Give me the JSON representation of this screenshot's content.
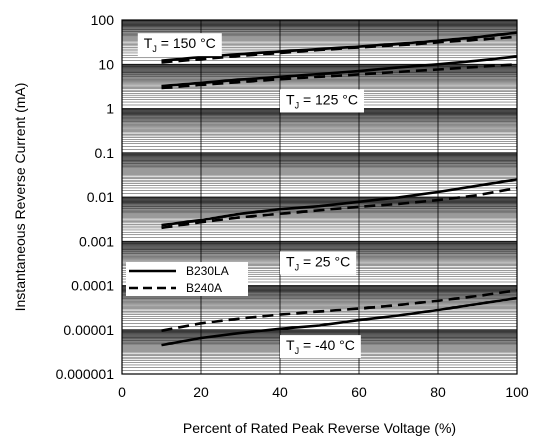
{
  "chart_data": {
    "type": "line",
    "xlabel": "Percent of Rated Peak Reverse Voltage (%)",
    "ylabel": "Instantaneous Reverse Current (mA)",
    "xlim": [
      0,
      100
    ],
    "ylim": [
      1e-06,
      100
    ],
    "yscale": "log",
    "grid": true,
    "x_ticks": [
      0,
      20,
      40,
      60,
      80,
      100
    ],
    "x_tick_labels": [
      "0",
      "20",
      "40",
      "60",
      "80",
      "100"
    ],
    "y_ticks": [
      1e-06,
      1e-05,
      0.0001,
      0.001,
      0.01,
      0.1,
      1,
      10,
      100
    ],
    "y_tick_labels": [
      "0.000001",
      "0.00001",
      "0.0001",
      "0.001",
      "0.01",
      "0.1",
      "1",
      "10",
      "100"
    ],
    "legend": {
      "placement": "left",
      "entries": [
        {
          "name": "B230LA",
          "style": "solid"
        },
        {
          "name": "B240A",
          "style": "dashed"
        }
      ]
    },
    "annotations": [
      {
        "main": "T",
        "sub": "J",
        "rest": " = 150 °C",
        "x": 4,
        "y": 30
      },
      {
        "main": "T",
        "sub": "J",
        "rest": " = 125 °C",
        "x": 40,
        "y": 1.6
      },
      {
        "main": "T",
        "sub": "J",
        "rest": " = 25 °C",
        "x": 40,
        "y": 0.00035
      },
      {
        "main": "T",
        "sub": "J",
        "rest": " = -40 °C",
        "x": 40,
        "y": 4.5e-06
      }
    ],
    "series": [
      {
        "name": "B230LA",
        "group": "TJ=150",
        "style": "solid",
        "x": [
          10,
          20,
          30,
          40,
          50,
          60,
          70,
          80,
          90,
          100
        ],
        "y": [
          12,
          14.5,
          17,
          19.5,
          22,
          25,
          29,
          34,
          41,
          52
        ]
      },
      {
        "name": "B240A",
        "group": "TJ=150",
        "style": "dashed",
        "x": [
          10,
          20,
          30,
          40,
          50,
          60,
          70,
          80,
          90,
          100
        ],
        "y": [
          11,
          13,
          15.5,
          18,
          21,
          24,
          27,
          31,
          36,
          42
        ]
      },
      {
        "name": "B230LA",
        "group": "TJ=125",
        "style": "solid",
        "x": [
          10,
          20,
          30,
          40,
          50,
          60,
          70,
          80,
          90,
          100
        ],
        "y": [
          3.2,
          3.8,
          4.5,
          5.2,
          6,
          7,
          8.5,
          10,
          12,
          15
        ]
      },
      {
        "name": "B240A",
        "group": "TJ=125",
        "style": "dashed",
        "x": [
          10,
          20,
          30,
          40,
          50,
          60,
          70,
          80,
          90,
          100
        ],
        "y": [
          2.9,
          3.4,
          4,
          4.6,
          5.2,
          5.9,
          6.7,
          7.6,
          8.7,
          10
        ]
      },
      {
        "name": "B230LA",
        "group": "TJ=25",
        "style": "solid",
        "x": [
          10,
          20,
          30,
          40,
          50,
          60,
          70,
          80,
          90,
          100
        ],
        "y": [
          0.0023,
          0.003,
          0.0042,
          0.0053,
          0.0062,
          0.0078,
          0.0098,
          0.013,
          0.018,
          0.025
        ]
      },
      {
        "name": "B240A",
        "group": "TJ=25",
        "style": "dashed",
        "x": [
          10,
          20,
          30,
          40,
          50,
          60,
          70,
          80,
          90,
          100
        ],
        "y": [
          0.002,
          0.0027,
          0.0035,
          0.0042,
          0.005,
          0.006,
          0.007,
          0.0085,
          0.011,
          0.016
        ]
      },
      {
        "name": "B230LA",
        "group": "TJ=-40",
        "style": "solid",
        "x": [
          10,
          20,
          30,
          40,
          50,
          60,
          70,
          80,
          90,
          100
        ],
        "y": [
          4.5e-06,
          6.5e-06,
          8.5e-06,
          1.05e-05,
          1.25e-05,
          1.65e-05,
          2.1e-05,
          2.8e-05,
          3.8e-05,
          5.2e-05
        ]
      },
      {
        "name": "B240A",
        "group": "TJ=-40",
        "style": "dashed",
        "x": [
          10,
          20,
          30,
          40,
          50,
          60,
          70,
          80,
          90,
          100
        ],
        "y": [
          9.5e-06,
          1.4e-05,
          1.8e-05,
          2.2e-05,
          2.6e-05,
          3e-05,
          3.6e-05,
          4.5e-05,
          5.8e-05,
          7.8e-05
        ]
      }
    ]
  }
}
